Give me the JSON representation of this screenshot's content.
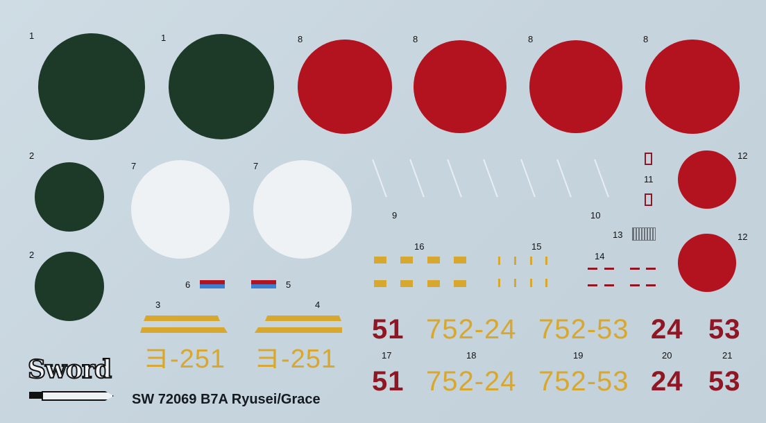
{
  "colors": {
    "background": "#c9d6df",
    "green": "#1d3a29",
    "red": "#b3121f",
    "white": "#eef2f4",
    "yellow": "#d8a72e",
    "dark_red": "#8f1622",
    "blue": "#3d7fd0"
  },
  "labels": {
    "l1a": "1",
    "l1b": "1",
    "l8a": "8",
    "l8b": "8",
    "l8c": "8",
    "l8d": "8",
    "l2a": "2",
    "l2b": "2",
    "l7a": "7",
    "l7b": "7",
    "l9": "9",
    "l10": "10",
    "l11": "11",
    "l12a": "12",
    "l12b": "12",
    "l13": "13",
    "l14": "14",
    "l15": "15",
    "l16": "16",
    "l6": "6",
    "l5": "5",
    "l3": "3",
    "l4": "4",
    "l17": "17",
    "l18": "18",
    "l19": "19",
    "l20": "20",
    "l21": "21"
  },
  "codes": {
    "c3": "ヨ-251",
    "c4": "ヨ-251"
  },
  "numbers_row1": [
    "51",
    "752-24",
    "752-53",
    "24",
    "53"
  ],
  "numbers_row2": [
    "51",
    "752-24",
    "752-53",
    "24",
    "53"
  ],
  "logo": {
    "text": "Sword"
  },
  "title": "SW 72069 B7A Ryusei/Grace"
}
